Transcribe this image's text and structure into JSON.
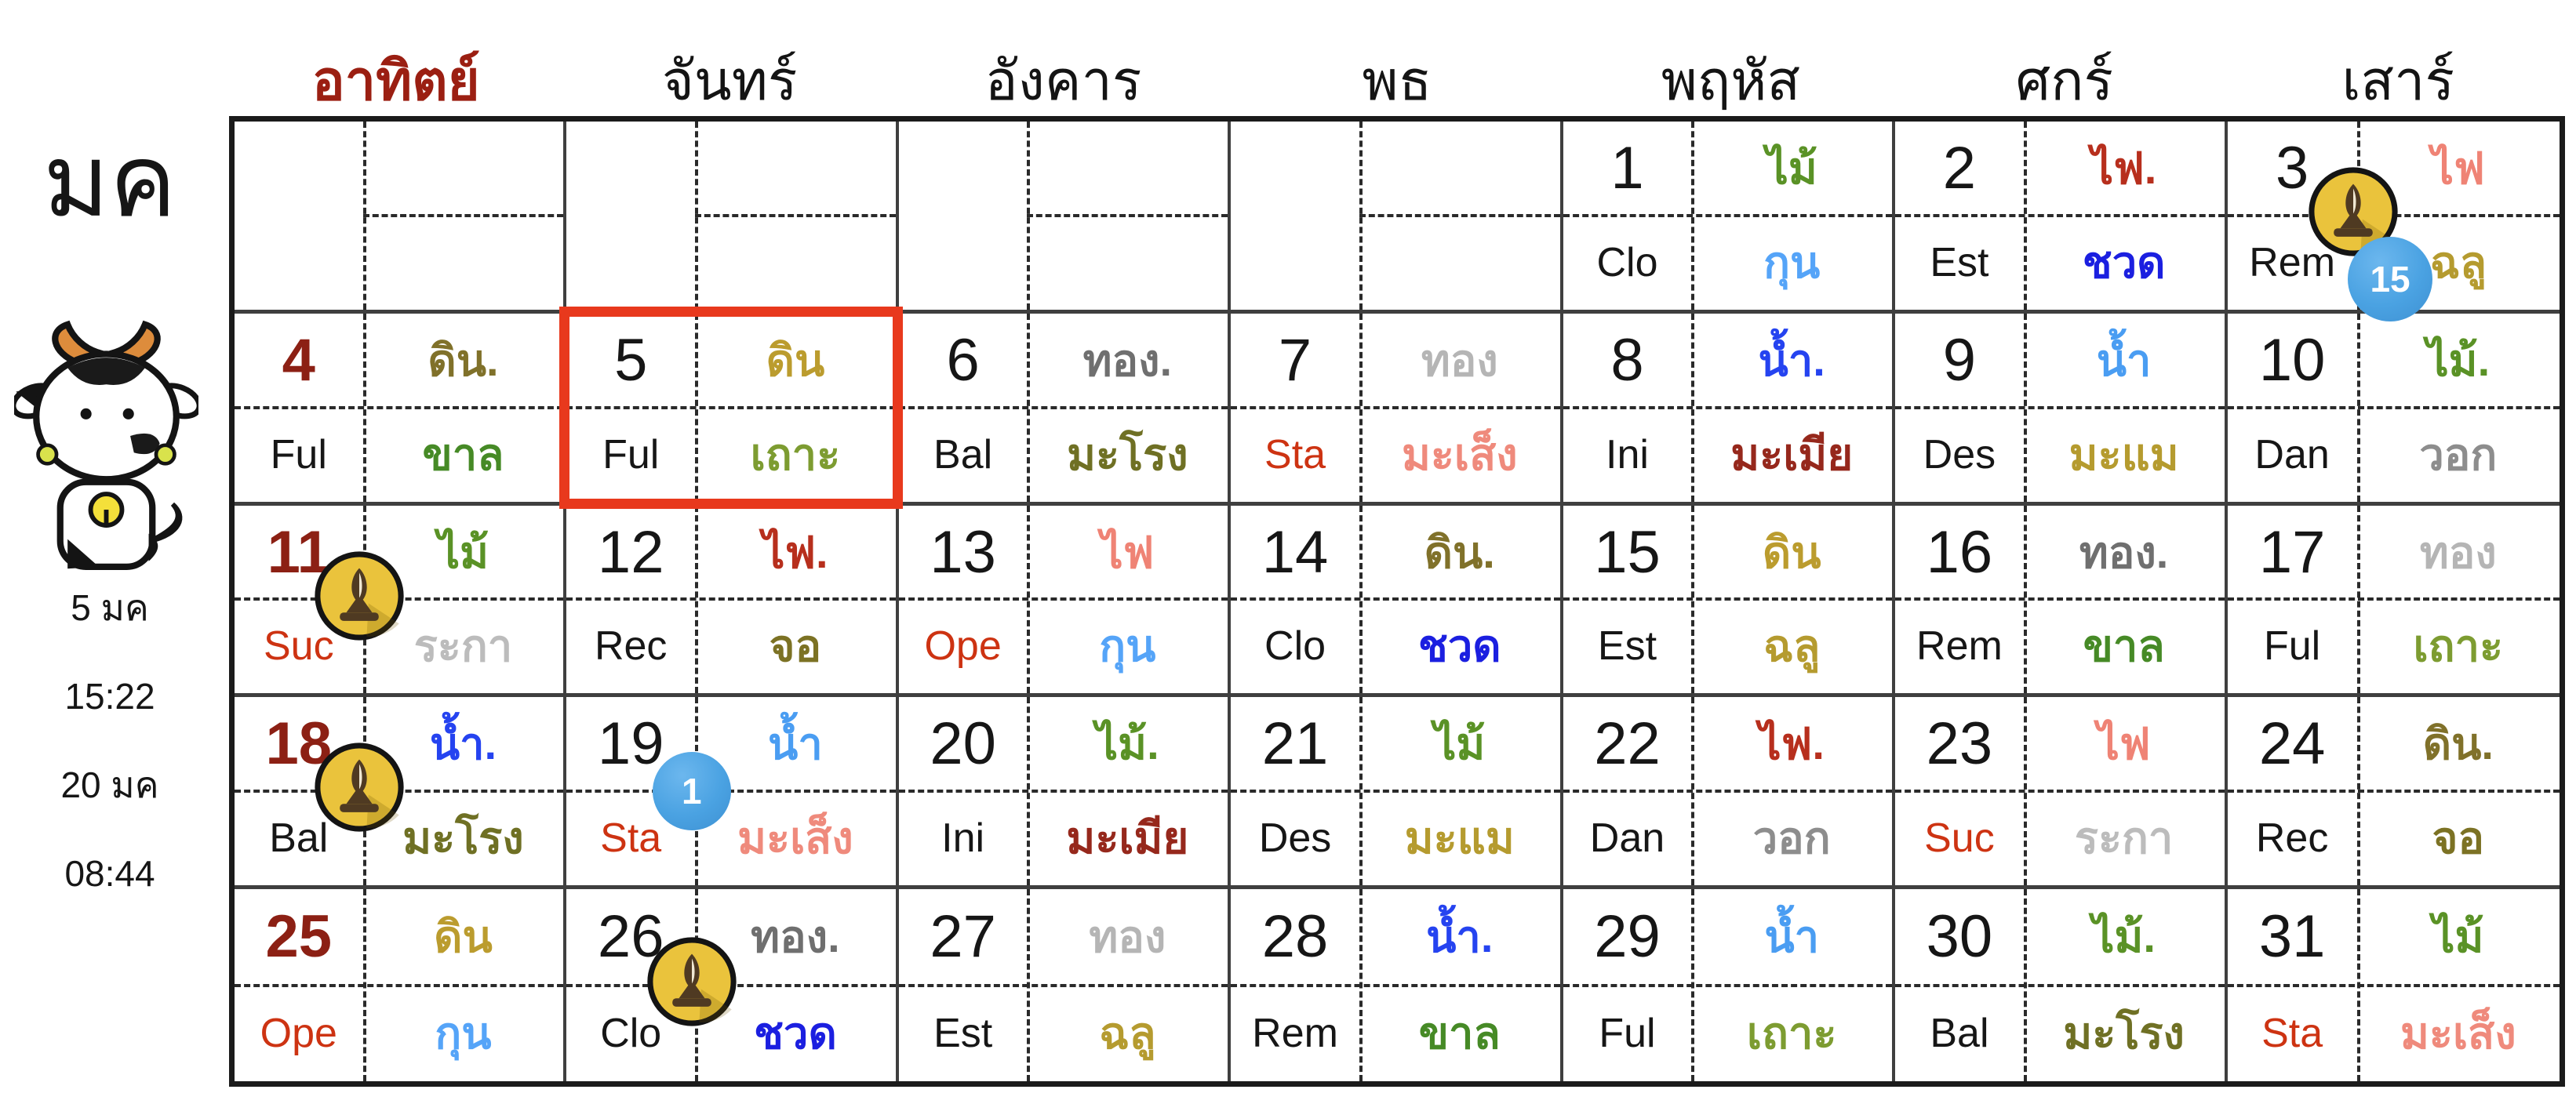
{
  "sidebar": {
    "month_abbr": "มค",
    "mascot": "ox-cartoon",
    "info_lines": [
      "5 มค",
      "15:22",
      "20 มค",
      "08:44"
    ]
  },
  "weekday_headers": [
    {
      "label": "อาทิตย์",
      "color": "#9b1f12"
    },
    {
      "label": "จันทร์",
      "color": "#141414"
    },
    {
      "label": "อังคาร",
      "color": "#141414"
    },
    {
      "label": "พธ",
      "color": "#141414"
    },
    {
      "label": "พฤหัส",
      "color": "#141414"
    },
    {
      "label": "ศกร์",
      "color": "#141414"
    },
    {
      "label": "เสาร์",
      "color": "#141414"
    }
  ],
  "colors": {
    "sunday_text": "#8c2014",
    "weekday_text": "#161616",
    "stage_red": "#cd3312",
    "stage_black": "#161616",
    "highlight_border": "#e8391d",
    "grid_line": "#3f3f3f",
    "dash_line": "#2a2a2a",
    "buddhist_icon_fill": "#eac33c",
    "moon_badge_fill": "#4aa2e2"
  },
  "calendar": {
    "selected_day": 5,
    "weeks": [
      [
        null,
        null,
        null,
        null,
        {
          "num": "1",
          "num_color": "#161616",
          "stage": "Clo",
          "stage_color": "#161616",
          "element": {
            "text": "ไม้",
            "color": "#5a9226"
          },
          "zodiac": {
            "text": "กุน",
            "color": "#55a4f8"
          },
          "icons": [],
          "badge": null,
          "highlight": false
        },
        {
          "num": "2",
          "num_color": "#161616",
          "stage": "Est",
          "stage_color": "#161616",
          "element": {
            "text": "ไฟ.",
            "color": "#b72f1d"
          },
          "zodiac": {
            "text": "ชวด",
            "color": "#1b1fe0"
          },
          "icons": [],
          "badge": null,
          "highlight": false
        },
        {
          "num": "3",
          "num_color": "#161616",
          "stage": "Rem",
          "stage_color": "#161616",
          "element": {
            "text": "ไฟ",
            "color": "#ef8375"
          },
          "zodiac": {
            "text": "ฉลู",
            "color": "#b59b2f"
          },
          "icons": [
            "buddhist-day"
          ],
          "badge": "15",
          "highlight": false
        }
      ],
      [
        {
          "num": "4",
          "num_color": "#8c2014",
          "stage": "Ful",
          "stage_color": "#161616",
          "element": {
            "text": "ดิน.",
            "color": "#80712a"
          },
          "zodiac": {
            "text": "ขาล",
            "color": "#468a26"
          },
          "icons": [],
          "badge": null,
          "highlight": false
        },
        {
          "num": "5",
          "num_color": "#161616",
          "stage": "Ful",
          "stage_color": "#161616",
          "element": {
            "text": "ดิน",
            "color": "#bb9c2e"
          },
          "zodiac": {
            "text": "เถาะ",
            "color": "#7d9c31"
          },
          "icons": [],
          "badge": null,
          "highlight": true
        },
        {
          "num": "6",
          "num_color": "#161616",
          "stage": "Bal",
          "stage_color": "#161616",
          "element": {
            "text": "ทอง.",
            "color": "#6f6f6f"
          },
          "zodiac": {
            "text": "มะโรง",
            "color": "#6f7024"
          },
          "icons": [],
          "badge": null,
          "highlight": false
        },
        {
          "num": "7",
          "num_color": "#161616",
          "stage": "Sta",
          "stage_color": "#cd3312",
          "element": {
            "text": "ทอง",
            "color": "#b5b5b5"
          },
          "zodiac": {
            "text": "มะเส็ง",
            "color": "#ef8a7c"
          },
          "icons": [],
          "badge": null,
          "highlight": false
        },
        {
          "num": "8",
          "num_color": "#161616",
          "stage": "Ini",
          "stage_color": "#161616",
          "element": {
            "text": "น้ำ.",
            "color": "#2543f0"
          },
          "zodiac": {
            "text": "มะเมีย",
            "color": "#96281c"
          },
          "icons": [],
          "badge": null,
          "highlight": false
        },
        {
          "num": "9",
          "num_color": "#161616",
          "stage": "Des",
          "stage_color": "#161616",
          "element": {
            "text": "น้ำ",
            "color": "#4a9df2"
          },
          "zodiac": {
            "text": "มะแม",
            "color": "#b59b2f"
          },
          "icons": [],
          "badge": null,
          "highlight": false
        },
        {
          "num": "10",
          "num_color": "#161616",
          "stage": "Dan",
          "stage_color": "#161616",
          "element": {
            "text": "ไม้.",
            "color": "#5a9226"
          },
          "zodiac": {
            "text": "วอก",
            "color": "#8d8d8d"
          },
          "icons": [],
          "badge": null,
          "highlight": false
        }
      ],
      [
        {
          "num": "11",
          "num_color": "#8c2014",
          "stage": "Suc",
          "stage_color": "#cd3312",
          "element": {
            "text": "ไม้",
            "color": "#5a9226"
          },
          "zodiac": {
            "text": "ระกา",
            "color": "#bcbcbc"
          },
          "icons": [
            "buddhist-day"
          ],
          "badge": null,
          "highlight": false
        },
        {
          "num": "12",
          "num_color": "#161616",
          "stage": "Rec",
          "stage_color": "#161616",
          "element": {
            "text": "ไฟ.",
            "color": "#b72f1d"
          },
          "zodiac": {
            "text": "จอ",
            "color": "#7c7224"
          },
          "icons": [],
          "badge": null,
          "highlight": false
        },
        {
          "num": "13",
          "num_color": "#161616",
          "stage": "Ope",
          "stage_color": "#cd3312",
          "element": {
            "text": "ไฟ",
            "color": "#ef8375"
          },
          "zodiac": {
            "text": "กุน",
            "color": "#55a4f8"
          },
          "icons": [],
          "badge": null,
          "highlight": false
        },
        {
          "num": "14",
          "num_color": "#161616",
          "stage": "Clo",
          "stage_color": "#161616",
          "element": {
            "text": "ดิน.",
            "color": "#80712a"
          },
          "zodiac": {
            "text": "ชวด",
            "color": "#1b1fe0"
          },
          "icons": [],
          "badge": null,
          "highlight": false
        },
        {
          "num": "15",
          "num_color": "#161616",
          "stage": "Est",
          "stage_color": "#161616",
          "element": {
            "text": "ดิน",
            "color": "#bb9c2e"
          },
          "zodiac": {
            "text": "ฉลู",
            "color": "#b59b2f"
          },
          "icons": [],
          "badge": null,
          "highlight": false
        },
        {
          "num": "16",
          "num_color": "#161616",
          "stage": "Rem",
          "stage_color": "#161616",
          "element": {
            "text": "ทอง.",
            "color": "#6f6f6f"
          },
          "zodiac": {
            "text": "ขาล",
            "color": "#468a26"
          },
          "icons": [],
          "badge": null,
          "highlight": false
        },
        {
          "num": "17",
          "num_color": "#161616",
          "stage": "Ful",
          "stage_color": "#161616",
          "element": {
            "text": "ทอง",
            "color": "#b5b5b5"
          },
          "zodiac": {
            "text": "เถาะ",
            "color": "#7d9c31"
          },
          "icons": [],
          "badge": null,
          "highlight": false
        }
      ],
      [
        {
          "num": "18",
          "num_color": "#8c2014",
          "stage": "Bal",
          "stage_color": "#161616",
          "element": {
            "text": "น้ำ.",
            "color": "#2543f0"
          },
          "zodiac": {
            "text": "มะโรง",
            "color": "#6f7024"
          },
          "icons": [
            "buddhist-day"
          ],
          "badge": null,
          "highlight": false
        },
        {
          "num": "19",
          "num_color": "#161616",
          "stage": "Sta",
          "stage_color": "#cd3312",
          "element": {
            "text": "น้ำ",
            "color": "#4a9df2"
          },
          "zodiac": {
            "text": "มะเส็ง",
            "color": "#ef8a7c"
          },
          "icons": [],
          "badge": "1",
          "highlight": false
        },
        {
          "num": "20",
          "num_color": "#161616",
          "stage": "Ini",
          "stage_color": "#161616",
          "element": {
            "text": "ไม้.",
            "color": "#5a9226"
          },
          "zodiac": {
            "text": "มะเมีย",
            "color": "#96281c"
          },
          "icons": [],
          "badge": null,
          "highlight": false
        },
        {
          "num": "21",
          "num_color": "#161616",
          "stage": "Des",
          "stage_color": "#161616",
          "element": {
            "text": "ไม้",
            "color": "#5a9226"
          },
          "zodiac": {
            "text": "มะแม",
            "color": "#b59b2f"
          },
          "icons": [],
          "badge": null,
          "highlight": false
        },
        {
          "num": "22",
          "num_color": "#161616",
          "stage": "Dan",
          "stage_color": "#161616",
          "element": {
            "text": "ไฟ.",
            "color": "#b72f1d"
          },
          "zodiac": {
            "text": "วอก",
            "color": "#8d8d8d"
          },
          "icons": [],
          "badge": null,
          "highlight": false
        },
        {
          "num": "23",
          "num_color": "#161616",
          "stage": "Suc",
          "stage_color": "#cd3312",
          "element": {
            "text": "ไฟ",
            "color": "#ef8375"
          },
          "zodiac": {
            "text": "ระกา",
            "color": "#bcbcbc"
          },
          "icons": [],
          "badge": null,
          "highlight": false
        },
        {
          "num": "24",
          "num_color": "#161616",
          "stage": "Rec",
          "stage_color": "#161616",
          "element": {
            "text": "ดิน.",
            "color": "#80712a"
          },
          "zodiac": {
            "text": "จอ",
            "color": "#7c7224"
          },
          "icons": [],
          "badge": null,
          "highlight": false
        }
      ],
      [
        {
          "num": "25",
          "num_color": "#8c2014",
          "stage": "Ope",
          "stage_color": "#cd3312",
          "element": {
            "text": "ดิน",
            "color": "#bb9c2e"
          },
          "zodiac": {
            "text": "กุน",
            "color": "#55a4f8"
          },
          "icons": [],
          "badge": null,
          "highlight": false
        },
        {
          "num": "26",
          "num_color": "#161616",
          "stage": "Clo",
          "stage_color": "#161616",
          "element": {
            "text": "ทอง.",
            "color": "#6f6f6f"
          },
          "zodiac": {
            "text": "ชวด",
            "color": "#1b1fe0"
          },
          "icons": [
            "buddhist-day"
          ],
          "badge": null,
          "highlight": false
        },
        {
          "num": "27",
          "num_color": "#161616",
          "stage": "Est",
          "stage_color": "#161616",
          "element": {
            "text": "ทอง",
            "color": "#b5b5b5"
          },
          "zodiac": {
            "text": "ฉลู",
            "color": "#b59b2f"
          },
          "icons": [],
          "badge": null,
          "highlight": false
        },
        {
          "num": "28",
          "num_color": "#161616",
          "stage": "Rem",
          "stage_color": "#161616",
          "element": {
            "text": "น้ำ.",
            "color": "#2543f0"
          },
          "zodiac": {
            "text": "ขาล",
            "color": "#468a26"
          },
          "icons": [],
          "badge": null,
          "highlight": false
        },
        {
          "num": "29",
          "num_color": "#161616",
          "stage": "Ful",
          "stage_color": "#161616",
          "element": {
            "text": "น้ำ",
            "color": "#4a9df2"
          },
          "zodiac": {
            "text": "เถาะ",
            "color": "#7d9c31"
          },
          "icons": [],
          "badge": null,
          "highlight": false
        },
        {
          "num": "30",
          "num_color": "#161616",
          "stage": "Bal",
          "stage_color": "#161616",
          "element": {
            "text": "ไม้.",
            "color": "#5a9226"
          },
          "zodiac": {
            "text": "มะโรง",
            "color": "#6f7024"
          },
          "icons": [],
          "badge": null,
          "highlight": false
        },
        {
          "num": "31",
          "num_color": "#161616",
          "stage": "Sta",
          "stage_color": "#cd3312",
          "element": {
            "text": "ไม้",
            "color": "#5a9226"
          },
          "zodiac": {
            "text": "มะเส็ง",
            "color": "#ef8a7c"
          },
          "icons": [],
          "badge": null,
          "highlight": false
        }
      ]
    ]
  }
}
